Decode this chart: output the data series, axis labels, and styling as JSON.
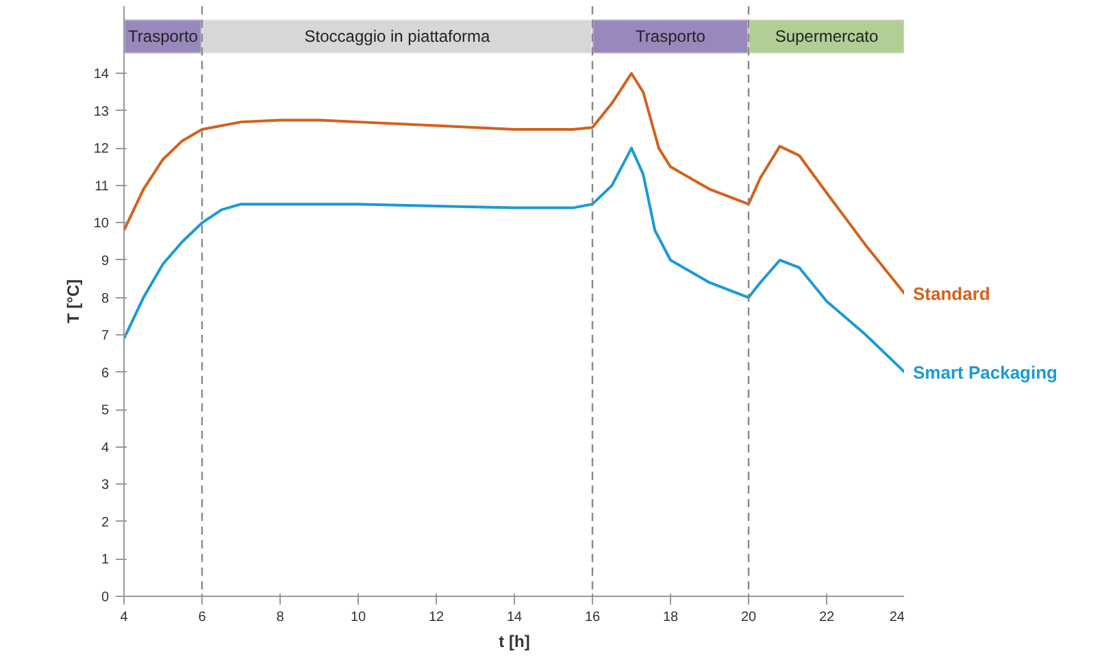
{
  "chart_data": {
    "type": "line",
    "xlabel": "t [h]",
    "ylabel": "T [°C]",
    "xlim": [
      4,
      24
    ],
    "ylim": [
      0,
      15.8
    ],
    "xticks": [
      4,
      6,
      8,
      10,
      12,
      14,
      16,
      18,
      20,
      22,
      24
    ],
    "yticks": [
      0,
      1,
      2,
      3,
      4,
      5,
      6,
      7,
      8,
      9,
      10,
      11,
      12,
      13,
      14
    ],
    "grid": false,
    "legend": "right",
    "series": [
      {
        "name": "Standard",
        "color": "#d4601c",
        "x": [
          4,
          4.5,
          5,
          5.5,
          6,
          7,
          8,
          9,
          10,
          12,
          14,
          15.5,
          16,
          16.5,
          17,
          17.3,
          17.7,
          18,
          19,
          20,
          20.3,
          20.8,
          21.3,
          22,
          23,
          24
        ],
        "values": [
          9.8,
          10.9,
          11.7,
          12.2,
          12.5,
          12.7,
          12.75,
          12.75,
          12.7,
          12.6,
          12.5,
          12.5,
          12.55,
          13.2,
          14.0,
          13.5,
          12.0,
          11.5,
          10.9,
          10.5,
          11.2,
          12.05,
          11.8,
          10.8,
          9.4,
          8.1
        ]
      },
      {
        "name": "Smart Packaging",
        "color": "#1a9ad6",
        "x": [
          4,
          4.5,
          5,
          5.5,
          6,
          6.5,
          7,
          8,
          10,
          12,
          14,
          15.5,
          16,
          16.5,
          17,
          17.3,
          17.6,
          18,
          19,
          20,
          20.3,
          20.8,
          21.3,
          22,
          23,
          24
        ],
        "values": [
          6.9,
          8.0,
          8.9,
          9.5,
          10.0,
          10.35,
          10.5,
          10.5,
          10.5,
          10.45,
          10.4,
          10.4,
          10.5,
          11.0,
          12.0,
          11.3,
          9.8,
          9.0,
          8.4,
          8.0,
          8.4,
          9.0,
          8.8,
          7.9,
          7.0,
          6.0
        ]
      }
    ],
    "ref_lines": [
      {
        "axis": "x",
        "value": 6,
        "line_style": "dashed",
        "color": "#888888"
      },
      {
        "axis": "x",
        "value": 16,
        "line_style": "dashed",
        "color": "#888888"
      },
      {
        "axis": "x",
        "value": 20,
        "line_style": "dashed",
        "color": "#888888"
      }
    ],
    "bands": [
      {
        "axis": "x",
        "from": 4,
        "to": 6,
        "label": "Trasporto",
        "color": "#8e7bb5"
      },
      {
        "axis": "x",
        "from": 6,
        "to": 16,
        "label": "Stoccaggio in piattaforma",
        "color": "#d3d3d3"
      },
      {
        "axis": "x",
        "from": 16,
        "to": 20,
        "label": "Trasporto",
        "color": "#8e7bb5"
      },
      {
        "axis": "x",
        "from": 20,
        "to": 24,
        "label": "Supermercato",
        "color": "#a9c98a"
      }
    ]
  }
}
